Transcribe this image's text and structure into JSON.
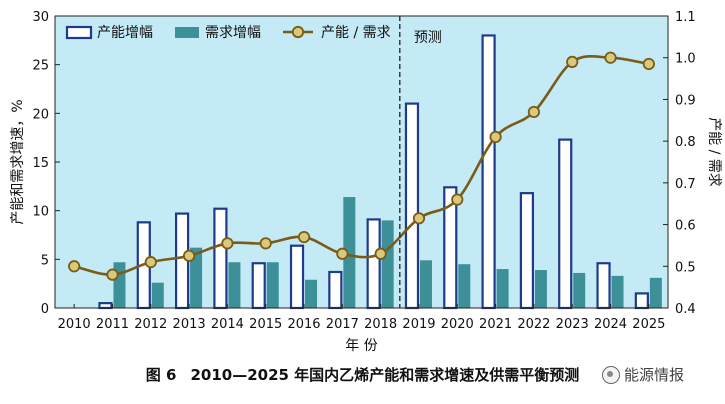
{
  "chart_data": {
    "type": "bar",
    "categories": [
      "2010",
      "2011",
      "2012",
      "2013",
      "2014",
      "2015",
      "2016",
      "2017",
      "2018",
      "2019",
      "2020",
      "2021",
      "2022",
      "2023",
      "2024",
      "2025"
    ],
    "series": [
      {
        "name": "产能增幅",
        "kind": "bar-outline",
        "axis": "left",
        "values": [
          0,
          0.5,
          8.8,
          9.7,
          10.2,
          4.6,
          6.4,
          3.7,
          9.1,
          21.0,
          12.4,
          28.0,
          11.8,
          17.3,
          4.6,
          1.5
        ]
      },
      {
        "name": "需求增幅",
        "kind": "bar-filled",
        "axis": "left",
        "values": [
          0,
          4.7,
          2.6,
          6.2,
          4.7,
          4.7,
          2.9,
          11.4,
          9.0,
          4.9,
          4.5,
          4.0,
          3.9,
          3.6,
          3.3,
          3.1
        ]
      },
      {
        "name": "产能 / 需求",
        "kind": "line",
        "axis": "right",
        "values": [
          0.5,
          0.48,
          0.51,
          0.525,
          0.555,
          0.555,
          0.57,
          0.53,
          0.53,
          0.615,
          0.66,
          0.81,
          0.87,
          0.99,
          1.0,
          0.985
        ]
      }
    ],
    "ylabel_left": "产能和需求增速，%",
    "ylabel_right": "产能 / 需求",
    "xlabel": "年  份",
    "ylim_left": [
      0,
      30
    ],
    "yticks_left": [
      "0",
      "5",
      "10",
      "15",
      "20",
      "25",
      "30"
    ],
    "ylim_right": [
      0.4,
      1.1
    ],
    "yticks_right": [
      "0.4",
      "0.5",
      "0.6",
      "0.7",
      "0.8",
      "0.9",
      "1.0",
      "1.1"
    ],
    "forecast_label": "预测",
    "forecast_start_after": "2018",
    "legend_position": "top-left",
    "grid": false,
    "colors": {
      "background": "#c4eaf6",
      "bar_outline": "#1f3a8a",
      "bar_fill": "#3d8f98",
      "line": "#7a5b17",
      "marker_face": "#d9c97a",
      "divider": "#222222"
    }
  },
  "caption": {
    "figure_number": "图 6",
    "title": "2010—2025 年国内乙烯产能和需求增速及供需平衡预测"
  },
  "watermark": {
    "text": "能源情报",
    "icon": "wechat-logo-icon"
  }
}
